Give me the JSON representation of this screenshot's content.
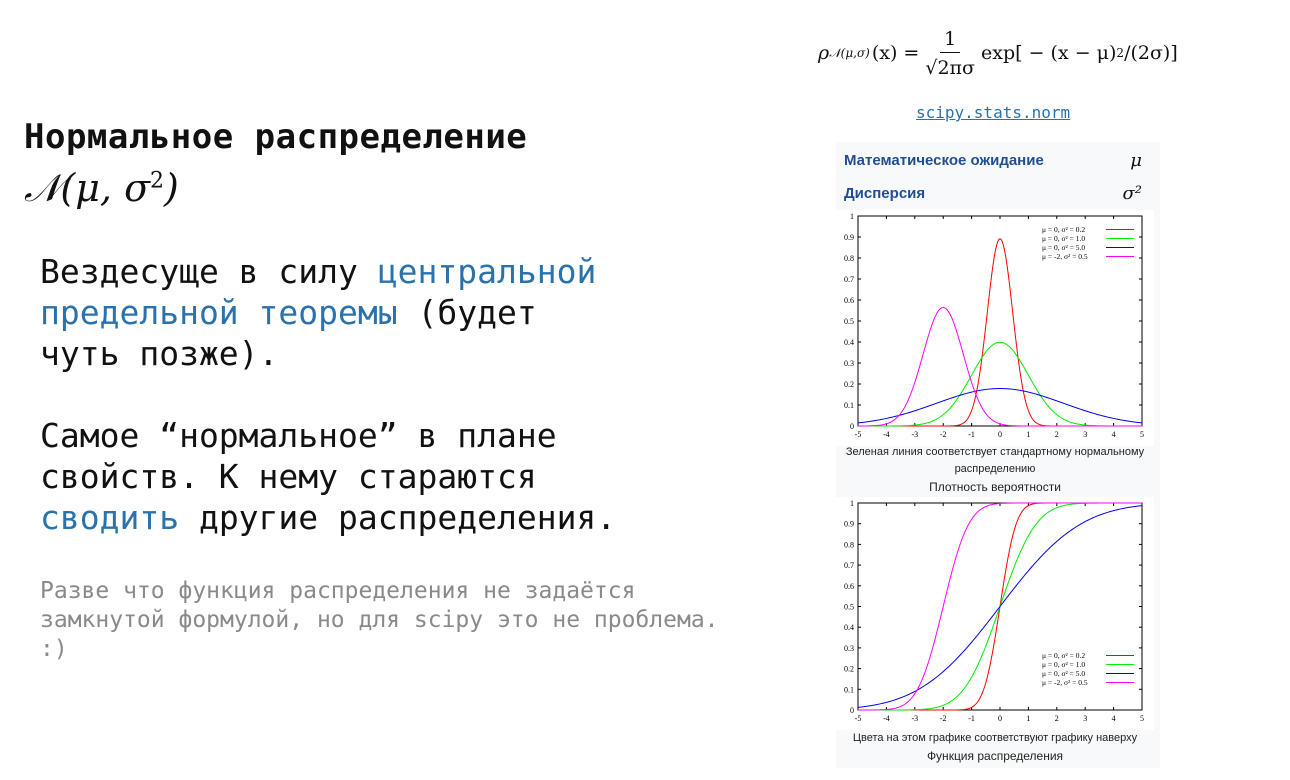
{
  "slide": {
    "title": "Нормальное распределение",
    "notation": "𝒩(μ, σ",
    "notation_power": "2",
    "notation_close": ")",
    "para1": {
      "t1": "Вездесуще в силу ",
      "link1": "центральной",
      "link2": "предельной теоремы",
      "t2": " (будет",
      "t3": "чуть позже)."
    },
    "para2": {
      "t1": "Самое “нормальное” в плане",
      "t2": "свойств. К нему стараются",
      "link": "сводить",
      "t3": " другие распределения."
    },
    "note": "Разве что функция распределения не задаётся замкнутой формулой, но для scipy это не проблема. :)",
    "colors": {
      "link": "#2a72ad",
      "note": "#8a8a8a",
      "infobox_label": "#1f4e93"
    }
  },
  "formula": {
    "lhs": "ρ",
    "lhs_sub": "𝒩(μ,σ)",
    "lhs_arg": "(x) =",
    "numerator": "1",
    "denominator": "√2πσ",
    "rhs": "exp[ − (x − μ)",
    "rhs_power": "2",
    "rhs_tail": "/(2σ)]"
  },
  "scipy_link": "scipy.stats.norm",
  "infobox": {
    "mean_label": "Математическое ожидание",
    "mean_symbol": "μ",
    "variance_label": "Дисперсия",
    "variance_symbol": "σ²"
  },
  "captions": {
    "pdf_note_line1": "Зеленая линия соответствует стандартному нормальному",
    "pdf_note_line2": "распределению",
    "pdf_title": "Плотность вероятности",
    "cdf_note": "Цвета на этом графике соответствуют графику наверху",
    "cdf_title": "Функция распределения"
  },
  "chart_data": [
    {
      "type": "line",
      "title": "Плотность вероятности",
      "function": "pdf",
      "xlim": [
        -5,
        5
      ],
      "ylim": [
        0,
        1
      ],
      "x_ticks": [
        -5,
        -4,
        -3,
        -2,
        -1,
        0,
        1,
        2,
        3,
        4,
        5
      ],
      "y_ticks": [
        0,
        0.1,
        0.2,
        0.3,
        0.4,
        0.5,
        0.6,
        0.7,
        0.8,
        0.9,
        1
      ],
      "legend_position": "top-right",
      "series": [
        {
          "name": "μ = 0, σ² = 0.2",
          "mu": 0,
          "variance": 0.2,
          "color": "#ff0000"
        },
        {
          "name": "μ = 0, σ² = 1.0",
          "mu": 0,
          "variance": 1.0,
          "color": "#00ee00"
        },
        {
          "name": "μ = 0, σ² = 5.0",
          "mu": 0,
          "variance": 5.0,
          "color": "#0000ee"
        },
        {
          "name": "μ = -2, σ² = 0.5",
          "mu": -2,
          "variance": 0.5,
          "color": "#ff00ff"
        }
      ]
    },
    {
      "type": "line",
      "title": "Функция распределения",
      "function": "cdf",
      "xlim": [
        -5,
        5
      ],
      "ylim": [
        0,
        1
      ],
      "x_ticks": [
        -5,
        -4,
        -3,
        -2,
        -1,
        0,
        1,
        2,
        3,
        4,
        5
      ],
      "y_ticks": [
        0,
        0.1,
        0.2,
        0.3,
        0.4,
        0.5,
        0.6,
        0.7,
        0.8,
        0.9,
        1
      ],
      "legend_position": "bottom-right",
      "series": [
        {
          "name": "μ = 0, σ² = 0.2",
          "mu": 0,
          "variance": 0.2,
          "color": "#ff0000"
        },
        {
          "name": "μ = 0, σ² = 1.0",
          "mu": 0,
          "variance": 1.0,
          "color": "#00ee00"
        },
        {
          "name": "μ = 0, σ² = 5.0",
          "mu": 0,
          "variance": 5.0,
          "color": "#0000ee"
        },
        {
          "name": "μ = -2, σ² = 0.5",
          "mu": -2,
          "variance": 0.5,
          "color": "#ff00ff"
        }
      ]
    }
  ]
}
